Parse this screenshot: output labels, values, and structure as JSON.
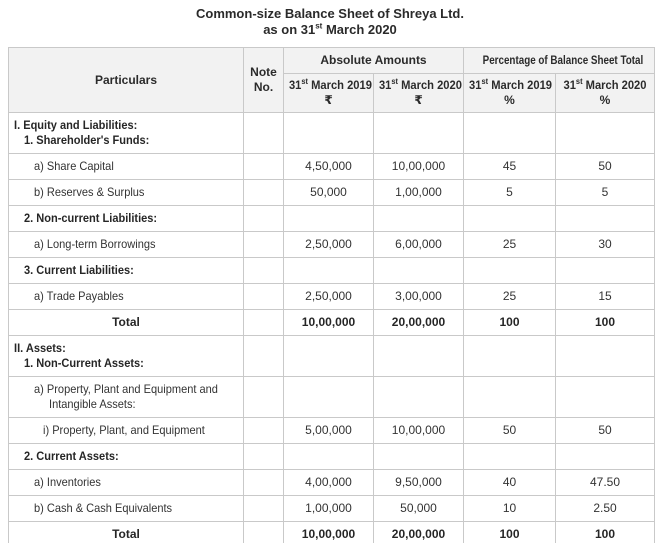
{
  "title": {
    "line1": "Common-size Balance Sheet of Shreya Ltd.",
    "line2_prefix": "as on 31",
    "line2_sup": "st",
    "line2_rest": " March 2020"
  },
  "colors": {
    "header_bg": "#f2f2f2",
    "grid_border": "#c9c9c9",
    "text": "#333333"
  },
  "table": {
    "col_particulars": "Particulars",
    "col_note": "Note No.",
    "group_absolute": "Absolute Amounts",
    "group_percentage": "Percentage of Balance Sheet Total",
    "subheaders": [
      {
        "prefix": "31",
        "sup": "st",
        "rest": " March 2019",
        "unit": "₹"
      },
      {
        "prefix": "31",
        "sup": "st",
        "rest": " March 2020",
        "unit": "₹"
      },
      {
        "prefix": "31",
        "sup": "st",
        "rest": " March 2019",
        "unit": "%"
      },
      {
        "prefix": "31",
        "sup": "st",
        "rest": " March 2020",
        "unit": "%"
      }
    ],
    "rows": [
      {
        "lines": [
          {
            "text": "I. Equity and Liabilities:",
            "indent": 0,
            "bold": true
          },
          {
            "text": "1. Shareholder's Funds:",
            "indent": 1,
            "bold": true
          }
        ],
        "note": "",
        "values": [
          "",
          "",
          "",
          ""
        ]
      },
      {
        "lines": [
          {
            "text": "a) Share Capital",
            "indent": 2,
            "bold": false
          }
        ],
        "note": "",
        "values": [
          "4,50,000",
          "10,00,000",
          "45",
          "50"
        ]
      },
      {
        "lines": [
          {
            "text": "b) Reserves & Surplus",
            "indent": 2,
            "bold": false
          }
        ],
        "note": "",
        "values": [
          "50,000",
          "1,00,000",
          "5",
          "5"
        ]
      },
      {
        "lines": [
          {
            "text": "2. Non-current Liabilities:",
            "indent": 1,
            "bold": true
          }
        ],
        "note": "",
        "values": [
          "",
          "",
          "",
          ""
        ]
      },
      {
        "lines": [
          {
            "text": "a) Long-term Borrowings",
            "indent": 2,
            "bold": false
          }
        ],
        "note": "",
        "values": [
          "2,50,000",
          "6,00,000",
          "25",
          "30"
        ]
      },
      {
        "lines": [
          {
            "text": "3. Current Liabilities:",
            "indent": 1,
            "bold": true
          }
        ],
        "note": "",
        "values": [
          "",
          "",
          "",
          ""
        ]
      },
      {
        "lines": [
          {
            "text": "a) Trade Payables",
            "indent": 2,
            "bold": false
          }
        ],
        "note": "",
        "values": [
          "2,50,000",
          "3,00,000",
          "25",
          "15"
        ]
      },
      {
        "lines": [
          {
            "text": "Total",
            "indent": 0,
            "bold": true
          }
        ],
        "center": true,
        "values_bold": true,
        "note": "",
        "values": [
          "10,00,000",
          "20,00,000",
          "100",
          "100"
        ]
      },
      {
        "lines": [
          {
            "text": "II. Assets:",
            "indent": 0,
            "bold": true
          },
          {
            "text": "1. Non-Current Assets:",
            "indent": 1,
            "bold": true
          }
        ],
        "note": "",
        "values": [
          "",
          "",
          "",
          ""
        ]
      },
      {
        "lines": [
          {
            "text": "a) Property, Plant and Equipment and",
            "indent": 2,
            "bold": false
          },
          {
            "text": "Intangible Assets:",
            "indent": 4,
            "bold": false
          }
        ],
        "note": "",
        "values": [
          "",
          "",
          "",
          ""
        ]
      },
      {
        "lines": [
          {
            "text": "i) Property, Plant, and Equipment",
            "indent": 3,
            "bold": false
          }
        ],
        "note": "",
        "values": [
          "5,00,000",
          "10,00,000",
          "50",
          "50"
        ]
      },
      {
        "lines": [
          {
            "text": "2. Current Assets:",
            "indent": 1,
            "bold": true
          }
        ],
        "note": "",
        "values": [
          "",
          "",
          "",
          ""
        ]
      },
      {
        "lines": [
          {
            "text": "a) Inventories",
            "indent": 2,
            "bold": false
          }
        ],
        "note": "",
        "values": [
          "4,00,000",
          "9,50,000",
          "40",
          "47.50"
        ]
      },
      {
        "lines": [
          {
            "text": "b) Cash & Cash Equivalents",
            "indent": 2,
            "bold": false
          }
        ],
        "note": "",
        "values": [
          "1,00,000",
          "50,000",
          "10",
          "2.50"
        ]
      },
      {
        "lines": [
          {
            "text": "Total",
            "indent": 0,
            "bold": true
          }
        ],
        "center": true,
        "values_bold": true,
        "note": "",
        "values": [
          "10,00,000",
          "20,00,000",
          "100",
          "100"
        ]
      }
    ]
  }
}
